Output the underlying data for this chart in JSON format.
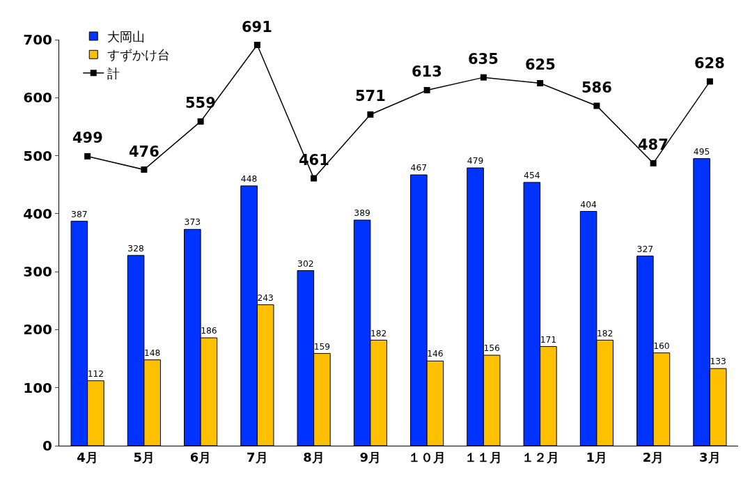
{
  "chart_data": {
    "type": "bar",
    "categories": [
      "4月",
      "5月",
      "6月",
      "7月",
      "8月",
      "9月",
      "１０月",
      "１１月",
      "１２月",
      "1月",
      "2月",
      "3月"
    ],
    "series": [
      {
        "name": "大岡山",
        "color": "#0033ff",
        "values": [
          387,
          328,
          373,
          448,
          302,
          389,
          467,
          479,
          454,
          404,
          327,
          495
        ]
      },
      {
        "name": "すずかけ台",
        "color": "#ffc000",
        "values": [
          112,
          148,
          186,
          243,
          159,
          182,
          146,
          156,
          171,
          182,
          160,
          133
        ]
      },
      {
        "name": "計",
        "type": "line",
        "color": "#000000",
        "values": [
          499,
          476,
          559,
          691,
          461,
          571,
          613,
          635,
          625,
          586,
          487,
          628
        ]
      }
    ],
    "ylim": [
      0,
      700
    ],
    "yticks": [
      0,
      100,
      200,
      300,
      400,
      500,
      600,
      700
    ],
    "data_labels": true,
    "legend": "top left",
    "marker": "square",
    "line_style": "solid"
  }
}
